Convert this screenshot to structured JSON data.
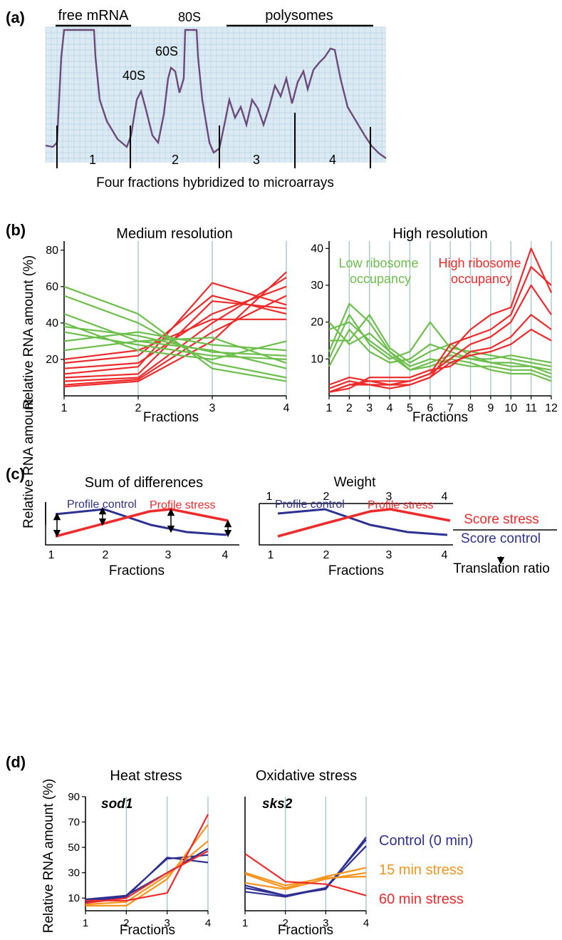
{
  "panel_a": {
    "label": "(a)",
    "annotations": {
      "free_mrna": "free mRNA",
      "s80": "80S",
      "s60": "60S",
      "s40": "40S",
      "polysomes": "polysomes"
    },
    "fraction_numbers": [
      "1",
      "2",
      "3",
      "4"
    ],
    "caption": "Four fractions hybridized to microarrays"
  },
  "panel_b": {
    "label": "(b)",
    "ylabel": "Relative RNA amount (%)",
    "colors": {
      "low": "#6bbf4a",
      "high": "#ee2b2b"
    }
  },
  "panel_c": {
    "label": "(c)",
    "ylabel": "Relative RNA amount",
    "left_title": "Sum of differences",
    "right_title": "Weight",
    "weight_ticks": [
      "1",
      "2",
      "3",
      "4"
    ],
    "profile_control": "Profile control",
    "profile_stress": "Profile stress",
    "score_stress": "Score stress",
    "score_control": "Score control",
    "translation_ratio": "Translation ratio",
    "xlabel": "Fractions",
    "ticks": [
      "1",
      "2",
      "3",
      "4"
    ],
    "colors": {
      "control": "#2e3192",
      "stress": "#ee2b2b"
    }
  },
  "panel_d": {
    "label": "(d)",
    "ylabel": "Relative RNA amount (%)",
    "legend": {
      "control": "Control (0 min)",
      "s15": "15 min stress",
      "s60": "60 min stress"
    },
    "colors": {
      "control": "#2e3192",
      "s15": "#f7941d",
      "s60": "#ee2b2b"
    }
  },
  "chart_data": [
    {
      "type": "line",
      "title": "Medium resolution",
      "xlabel": "Fractions",
      "ylabel": "Relative RNA amount (%)",
      "x": [
        1,
        2,
        3,
        4
      ],
      "ylim": [
        0,
        85
      ],
      "yticks": [
        20,
        40,
        60,
        80
      ],
      "series": [
        {
          "name": "",
          "color": "red",
          "profiles": [
            [
              10,
              12,
              52,
              48
            ],
            [
              15,
              18,
              45,
              60
            ],
            [
              8,
              10,
              40,
              65
            ],
            [
              18,
              22,
              55,
              45
            ],
            [
              5,
              8,
              30,
              68
            ],
            [
              12,
              16,
              62,
              50
            ],
            [
              20,
              25,
              42,
              42
            ],
            [
              6,
              9,
              35,
              55
            ]
          ]
        },
        {
          "name": "",
          "color": "green",
          "profiles": [
            [
              45,
              30,
              25,
              15
            ],
            [
              35,
              28,
              22,
              20
            ],
            [
              55,
              40,
              18,
              10
            ],
            [
              30,
              35,
              28,
              25
            ],
            [
              40,
              25,
              20,
              30
            ],
            [
              25,
              30,
              32,
              18
            ],
            [
              60,
              45,
              15,
              8
            ],
            [
              38,
              33,
              24,
              22
            ]
          ]
        }
      ]
    },
    {
      "type": "line",
      "title": "High resolution",
      "xlabel": "Fractions",
      "ylabel": "",
      "x": [
        1,
        2,
        3,
        4,
        5,
        6,
        7,
        8,
        9,
        10,
        11,
        12
      ],
      "ylim": [
        0,
        42
      ],
      "yticks": [
        10,
        20,
        30,
        40
      ],
      "annotations": {
        "low": "Low ribosome\noccupancy",
        "high": "High ribosome\noccupancy"
      },
      "series": [
        {
          "name": "Low ribosome occupancy",
          "color": "green",
          "profiles": [
            [
              18,
              20,
              15,
              11,
              7,
              9,
              11,
              10,
              9,
              8,
              8,
              6
            ],
            [
              12,
              25,
              20,
              12,
              8,
              10,
              9,
              8,
              8,
              7,
              7,
              5
            ],
            [
              15,
              15,
              22,
              13,
              9,
              12,
              14,
              11,
              9,
              9,
              8,
              7
            ],
            [
              8,
              18,
              12,
              9,
              10,
              14,
              12,
              10,
              10,
              11,
              10,
              9
            ],
            [
              20,
              14,
              17,
              12,
              7,
              8,
              10,
              9,
              7,
              6,
              6,
              4
            ],
            [
              10,
              22,
              14,
              10,
              12,
              20,
              13,
              12,
              11,
              10,
              9,
              8
            ]
          ]
        },
        {
          "name": "High ribosome occupancy",
          "color": "red",
          "profiles": [
            [
              1,
              3,
              4,
              4,
              4,
              6,
              10,
              14,
              16,
              20,
              30,
              22
            ],
            [
              2,
              4,
              3,
              3,
              3,
              5,
              12,
              18,
              22,
              24,
              40,
              28
            ],
            [
              1,
              2,
              5,
              5,
              5,
              7,
              8,
              12,
              13,
              16,
              22,
              18
            ],
            [
              3,
              5,
              4,
              3,
              4,
              6,
              14,
              16,
              18,
              22,
              35,
              30
            ],
            [
              1,
              3,
              3,
              2,
              3,
              5,
              9,
              11,
              12,
              14,
              18,
              15
            ]
          ]
        }
      ]
    },
    {
      "type": "line",
      "title": "Heat stress",
      "gene": "sod1",
      "xlabel": "Fractions",
      "ylabel": "Relative RNA amount (%)",
      "x": [
        1,
        2,
        3,
        4
      ],
      "ylim": [
        0,
        90
      ],
      "yticks": [
        10,
        30,
        50,
        70,
        90
      ],
      "series": [
        {
          "name": "Control (0 min)",
          "color": "#2e3192",
          "lines": [
            [
              9,
              12,
              41,
              44
            ],
            [
              8,
              12,
              30,
              49
            ],
            [
              7,
              11,
              42,
              38
            ]
          ]
        },
        {
          "name": "15 min stress",
          "color": "#f7941d",
          "lines": [
            [
              4,
              4,
              25,
              68
            ],
            [
              5,
              7,
              28,
              55
            ]
          ]
        },
        {
          "name": "60 min stress",
          "color": "#ee2b2b",
          "lines": [
            [
              8,
              8,
              14,
              76
            ],
            [
              6,
              10,
              30,
              47
            ]
          ]
        }
      ]
    },
    {
      "type": "line",
      "title": "Oxidative stress",
      "gene": "sks2",
      "xlabel": "Fractions",
      "ylabel": "",
      "x": [
        1,
        2,
        3,
        4
      ],
      "ylim": [
        0,
        90
      ],
      "yticks": [],
      "series": [
        {
          "name": "Control (0 min)",
          "color": "#2e3192",
          "lines": [
            [
              18,
              12,
              17,
              58
            ],
            [
              15,
              11,
              18,
              51
            ],
            [
              20,
              12,
              18,
              56
            ]
          ]
        },
        {
          "name": "15 min stress",
          "color": "#f7941d",
          "lines": [
            [
              29,
              18,
              27,
              34
            ],
            [
              22,
              17,
              25,
              30
            ],
            [
              30,
              20,
              26,
              27
            ]
          ]
        },
        {
          "name": "60 min stress",
          "color": "#ee2b2b",
          "lines": [
            [
              45,
              23,
              21,
              12
            ]
          ]
        }
      ]
    }
  ]
}
